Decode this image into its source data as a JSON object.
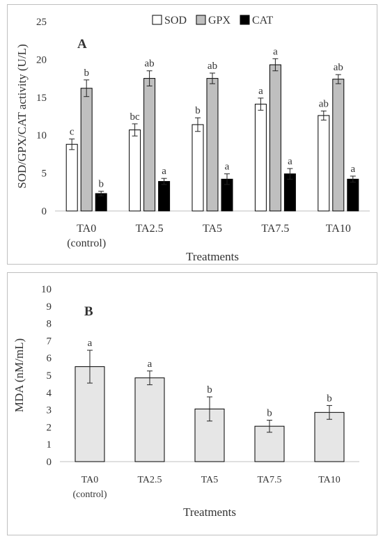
{
  "chart_data": [
    {
      "type": "bar",
      "panel_label": "A",
      "categories": [
        "TA0 (control)",
        "TA2.5",
        "TA5",
        "TA7.5",
        "TA10"
      ],
      "category_lines": [
        [
          "TA0",
          "(control)"
        ],
        [
          "TA2.5"
        ],
        [
          "TA5"
        ],
        [
          "TA7.5"
        ],
        [
          "TA10"
        ]
      ],
      "series": [
        {
          "name": "SOD",
          "color": "#ffffff",
          "values": [
            8.8,
            10.7,
            11.4,
            14.1,
            12.6
          ],
          "errors": [
            0.7,
            0.8,
            0.9,
            0.8,
            0.6
          ],
          "labels": [
            "c",
            "bc",
            "b",
            "a",
            "ab"
          ]
        },
        {
          "name": "GPX",
          "color": "#bfbfbf",
          "values": [
            16.2,
            17.5,
            17.5,
            19.3,
            17.4
          ],
          "errors": [
            1.1,
            1.0,
            0.7,
            0.8,
            0.6
          ],
          "labels": [
            "b",
            "ab",
            "ab",
            "a",
            "ab"
          ]
        },
        {
          "name": "CAT",
          "color": "#000000",
          "values": [
            2.3,
            3.9,
            4.2,
            4.9,
            4.2
          ],
          "errors": [
            0.3,
            0.4,
            0.7,
            0.7,
            0.4
          ],
          "labels": [
            "b",
            "a",
            "a",
            "a",
            "a"
          ]
        }
      ],
      "ylabel": "SOD/GPX/CAT activity (U/L)",
      "xlabel": "Treatments",
      "ylim": [
        0,
        25
      ],
      "yticks": [
        0,
        5,
        10,
        15,
        20,
        25
      ],
      "legend_position": "top-center",
      "grid": false
    },
    {
      "type": "bar",
      "panel_label": "B",
      "categories": [
        "TA0 (control)",
        "TA2.5",
        "TA5",
        "TA7.5",
        "TA10"
      ],
      "category_lines": [
        [
          "TA0",
          "(control)"
        ],
        [
          "TA2.5"
        ],
        [
          "TA5"
        ],
        [
          "TA7.5"
        ],
        [
          "TA10"
        ]
      ],
      "series": [
        {
          "name": "",
          "color": "#e6e6e6",
          "values": [
            5.5,
            4.85,
            3.05,
            2.05,
            2.85
          ],
          "errors": [
            0.95,
            0.4,
            0.7,
            0.35,
            0.4
          ],
          "labels": [
            "a",
            "a",
            "b",
            "b",
            "b"
          ]
        }
      ],
      "ylabel": "MDA (nM/mL)",
      "xlabel": "Treatments",
      "ylim": [
        0,
        10
      ],
      "yticks": [
        0,
        1,
        2,
        3,
        4,
        5,
        6,
        7,
        8,
        9,
        10
      ],
      "legend_position": "none",
      "grid": false
    }
  ]
}
